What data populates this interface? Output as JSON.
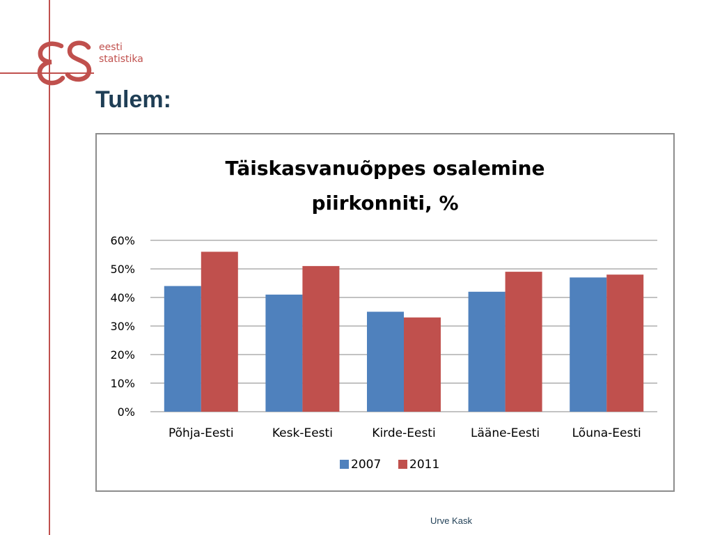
{
  "slide": {
    "title": "Tulem:",
    "footer": "Urve Kask",
    "logo_text_line1": "eesti",
    "logo_text_line2": "statistika"
  },
  "colors": {
    "accent": "#c0504d",
    "title": "#1f3e55",
    "series_2007": "#4f81bd",
    "series_2011": "#c0504d"
  },
  "chart_data": {
    "type": "bar",
    "title_line1": "Täiskasvanuõppes osalemine",
    "title_line2": "piirkonniti, %",
    "categories": [
      "Põhja-Eesti",
      "Kesk-Eesti",
      "Kirde-Eesti",
      "Lääne-Eesti",
      "Lõuna-Eesti"
    ],
    "series": [
      {
        "name": "2007",
        "color": "#4f81bd",
        "values": [
          44,
          41,
          35,
          42,
          47
        ]
      },
      {
        "name": "2011",
        "color": "#c0504d",
        "values": [
          56,
          51,
          33,
          49,
          48
        ]
      }
    ],
    "y_ticks": [
      "0%",
      "10%",
      "20%",
      "30%",
      "40%",
      "50%",
      "60%"
    ],
    "ylim": [
      0,
      60
    ],
    "grid": true,
    "legend_position": "bottom"
  }
}
